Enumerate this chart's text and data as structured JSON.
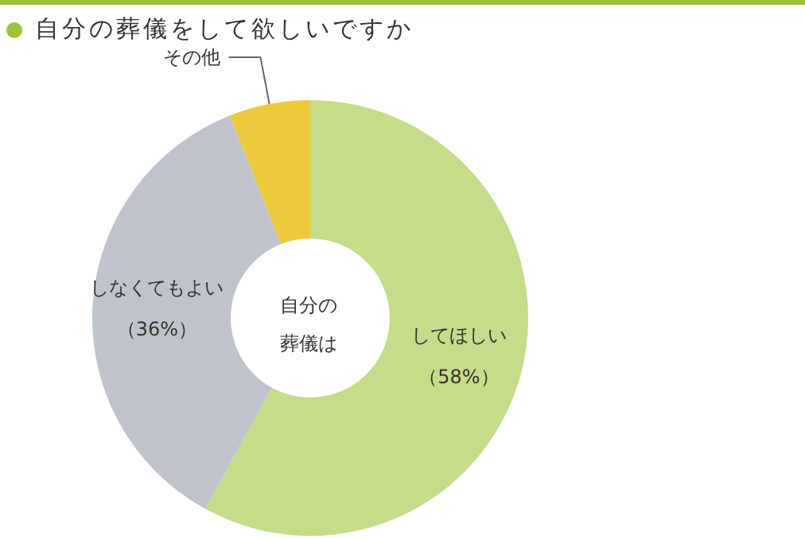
{
  "chart_data": {
    "type": "donut",
    "title": "自分の葬儀をして欲しいですか",
    "categories": [
      "してほしい",
      "しなくてもよい",
      "その他"
    ],
    "values": [
      58,
      36,
      6
    ],
    "colors": [
      "#c5dc8a",
      "#bfc3cc",
      "#ecca3b"
    ],
    "value_labels": [
      "（58%）",
      "（36%）",
      null
    ],
    "annotations": [
      "自分の葬儀は"
    ],
    "legend": false
  }
}
